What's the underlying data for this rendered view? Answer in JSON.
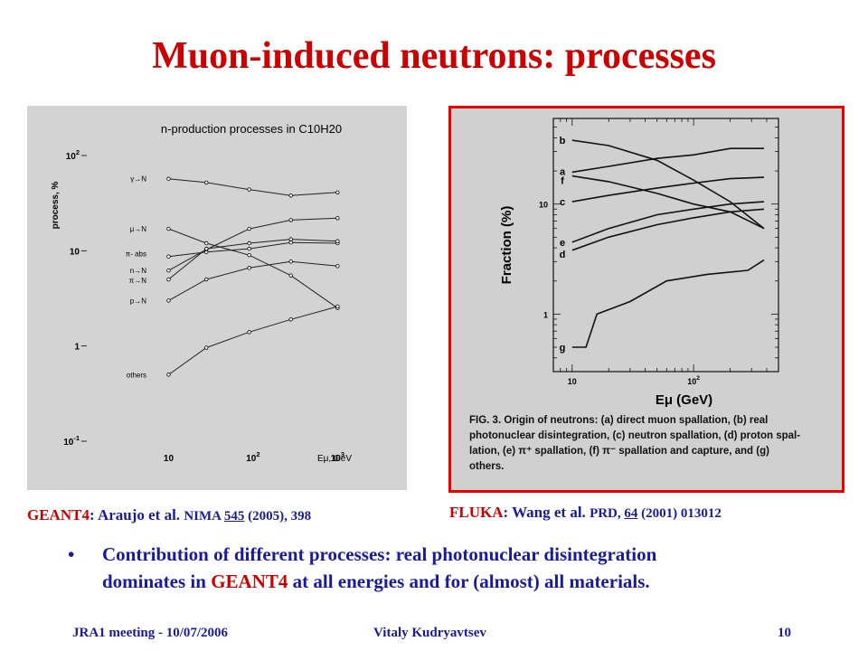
{
  "slide": {
    "title": "Muon-induced neutrons: processes",
    "caption_left": {
      "code": "GEANT4",
      "text": ": Araujo et al. ",
      "journal": "NIMA ",
      "volume": "545",
      "rest": " (2005), 398"
    },
    "caption_right": {
      "code": "FLUKA",
      "text": ": Wang et al. ",
      "journal": "PRD, ",
      "volume": "64",
      "rest": " (2001) 013012"
    },
    "bullet": {
      "dot": "•",
      "line1": "Contribution of different processes: real photonuclear disintegration",
      "pre": "dominates in ",
      "highlight": "GEANT4",
      "post": " at all energies and for (almost) all materials."
    },
    "footer": {
      "left": "JRA1 meeting - 10/07/2006",
      "center": "Vitaly Kudryavtsev",
      "right": "10"
    }
  },
  "chart_data": [
    {
      "type": "line",
      "title": "n-production processes in C10H20",
      "xlabel": "Eμ, GeV",
      "ylabel": "process, %",
      "x_scale": "log",
      "y_scale": "log",
      "xlim": [
        7,
        1300
      ],
      "ylim": [
        0.1,
        100
      ],
      "x_ticks": [
        "10",
        "10^2",
        "10^3"
      ],
      "y_ticks": [
        "10^-1",
        "1",
        "10",
        "10^2"
      ],
      "x": [
        10,
        28,
        90,
        280,
        1000
      ],
      "series": [
        {
          "name": "γ→N",
          "values": [
            57,
            52,
            44,
            38,
            41
          ]
        },
        {
          "name": "μ→N",
          "values": [
            17,
            12,
            9,
            5.5,
            2.5
          ]
        },
        {
          "name": "π- abs",
          "values": [
            8.7,
            9.7,
            10.5,
            12.2,
            12
          ]
        },
        {
          "name": "n→N",
          "values": [
            6.2,
            10.3,
            17,
            21,
            22
          ]
        },
        {
          "name": "π→N",
          "values": [
            5,
            10.5,
            12,
            13.2,
            12.6
          ]
        },
        {
          "name": "p→N",
          "values": [
            3,
            5,
            6.6,
            7.7,
            6.9
          ]
        },
        {
          "name": "others",
          "values": [
            0.5,
            0.96,
            1.4,
            1.9,
            2.6
          ]
        }
      ]
    },
    {
      "type": "line",
      "xlabel": "Eμ (GeV)",
      "ylabel": "Fraction (%)",
      "x_scale": "log",
      "y_scale": "log",
      "xlim": [
        7,
        500
      ],
      "ylim": [
        0.3,
        60
      ],
      "x_ticks": [
        "10",
        "10^2"
      ],
      "y_ticks": [
        "1",
        "10"
      ],
      "series": [
        {
          "name": "b",
          "x": [
            10,
            20,
            50,
            100,
            200,
            380
          ],
          "values": [
            38,
            34,
            25,
            16.5,
            10.5,
            6
          ]
        },
        {
          "name": "a",
          "x": [
            10,
            20,
            50,
            100,
            200,
            380
          ],
          "values": [
            19.5,
            22,
            26,
            28,
            32,
            32
          ]
        },
        {
          "name": "f",
          "x": [
            10,
            20,
            50,
            100,
            200,
            380
          ],
          "values": [
            18,
            16,
            12.5,
            10,
            8.5,
            6
          ]
        },
        {
          "name": "c",
          "x": [
            10,
            20,
            50,
            100,
            200,
            380
          ],
          "values": [
            10.5,
            12,
            14,
            15.5,
            17,
            17.5
          ]
        },
        {
          "name": "e",
          "x": [
            10,
            20,
            50,
            100,
            200,
            380
          ],
          "values": [
            4.5,
            6,
            8,
            9,
            10,
            10.5
          ]
        },
        {
          "name": "d",
          "x": [
            10,
            20,
            50,
            100,
            200,
            380
          ],
          "values": [
            3.8,
            5,
            6.5,
            7.5,
            8.5,
            9
          ]
        },
        {
          "name": "g",
          "x": [
            10,
            13,
            16,
            30,
            60,
            130,
            280,
            380
          ],
          "values": [
            0.5,
            0.5,
            1,
            1.3,
            2,
            2.3,
            2.5,
            3.1
          ]
        }
      ],
      "caption": "FIG. 3. Origin of neutrons: (a) direct muon spallation, (b) real photonuclear disintegration, (c) neutron spallation, (d) proton spallation, (e) π+ spallation, (f) π− spallation and capture, and (g) others.",
      "caption_lines": [
        "FIG. 3.  Origin of neutrons: (a) direct muon spallation, (b) real",
        "photonuclear disintegration, (c) neutron spallation, (d) proton spal-",
        "lation, (e) π⁺ spallation, (f) π⁻ spallation and capture, and (g)",
        "others."
      ]
    }
  ]
}
